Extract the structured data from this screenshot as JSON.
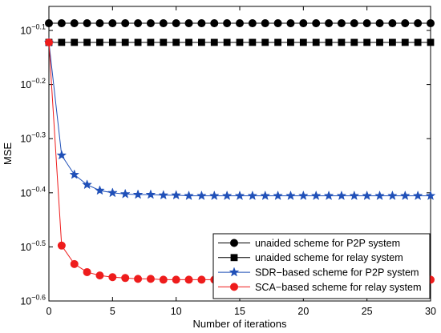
{
  "chart_data": {
    "type": "line",
    "xlabel": "Number of iterations",
    "ylabel": "MSE",
    "xlim": [
      0,
      30
    ],
    "ylim": [
      0.2512,
      0.8799
    ],
    "yscale": "log",
    "grid": false,
    "legend_position": "bottom-right",
    "xticks": [
      0,
      5,
      10,
      15,
      20,
      25,
      30
    ],
    "xtick_labels": [
      "0",
      "5",
      "10",
      "15",
      "20",
      "25",
      "30"
    ],
    "yticks": [
      0.7943,
      0.631,
      0.5012,
      0.3981,
      0.3162,
      0.2512
    ],
    "ytick_labels": [
      {
        "base": "10",
        "exp": "−0.1"
      },
      {
        "base": "10",
        "exp": "−0.2"
      },
      {
        "base": "10",
        "exp": "−0.3"
      },
      {
        "base": "10",
        "exp": "−0.4"
      },
      {
        "base": "10",
        "exp": "−0.5"
      },
      {
        "base": "10",
        "exp": "−0.6"
      }
    ],
    "x": [
      0,
      1,
      2,
      3,
      4,
      5,
      6,
      7,
      8,
      9,
      10,
      11,
      12,
      13,
      14,
      15,
      16,
      17,
      18,
      19,
      20,
      21,
      22,
      23,
      24,
      25,
      26,
      27,
      28,
      29,
      30
    ],
    "series": [
      {
        "name": "unaided scheme for P2P system",
        "color": "#000000",
        "marker": "circle",
        "values": [
          0.819,
          0.819,
          0.819,
          0.819,
          0.819,
          0.819,
          0.819,
          0.819,
          0.819,
          0.819,
          0.819,
          0.819,
          0.819,
          0.819,
          0.819,
          0.819,
          0.819,
          0.819,
          0.819,
          0.819,
          0.819,
          0.819,
          0.819,
          0.819,
          0.819,
          0.819,
          0.819,
          0.819,
          0.819,
          0.819,
          0.819
        ]
      },
      {
        "name": "unaided scheme for relay system",
        "color": "#000000",
        "marker": "square",
        "values": [
          0.755,
          0.755,
          0.755,
          0.755,
          0.755,
          0.755,
          0.755,
          0.755,
          0.755,
          0.755,
          0.755,
          0.755,
          0.755,
          0.755,
          0.755,
          0.755,
          0.755,
          0.755,
          0.755,
          0.755,
          0.755,
          0.755,
          0.755,
          0.755,
          0.755,
          0.755,
          0.755,
          0.755,
          0.755,
          0.755,
          0.755
        ]
      },
      {
        "name": "SDR−based scheme for P2P system",
        "color": "#2050b8",
        "marker": "star",
        "values": [
          0.755,
          0.467,
          0.43,
          0.412,
          0.402,
          0.398,
          0.396,
          0.395,
          0.395,
          0.394,
          0.394,
          0.393,
          0.393,
          0.393,
          0.393,
          0.393,
          0.393,
          0.393,
          0.393,
          0.393,
          0.393,
          0.393,
          0.393,
          0.393,
          0.393,
          0.393,
          0.393,
          0.393,
          0.393,
          0.393,
          0.393
        ]
      },
      {
        "name": "SCA−based scheme for relay system",
        "color": "#ee1c1c",
        "marker": "circle",
        "values": [
          0.755,
          0.318,
          0.294,
          0.284,
          0.28,
          0.278,
          0.277,
          0.276,
          0.276,
          0.275,
          0.275,
          0.275,
          0.275,
          0.275,
          0.275,
          0.275,
          0.275,
          0.275,
          0.275,
          0.275,
          0.275,
          0.275,
          0.275,
          0.275,
          0.275,
          0.275,
          0.275,
          0.275,
          0.275,
          0.275,
          0.275
        ]
      }
    ]
  }
}
